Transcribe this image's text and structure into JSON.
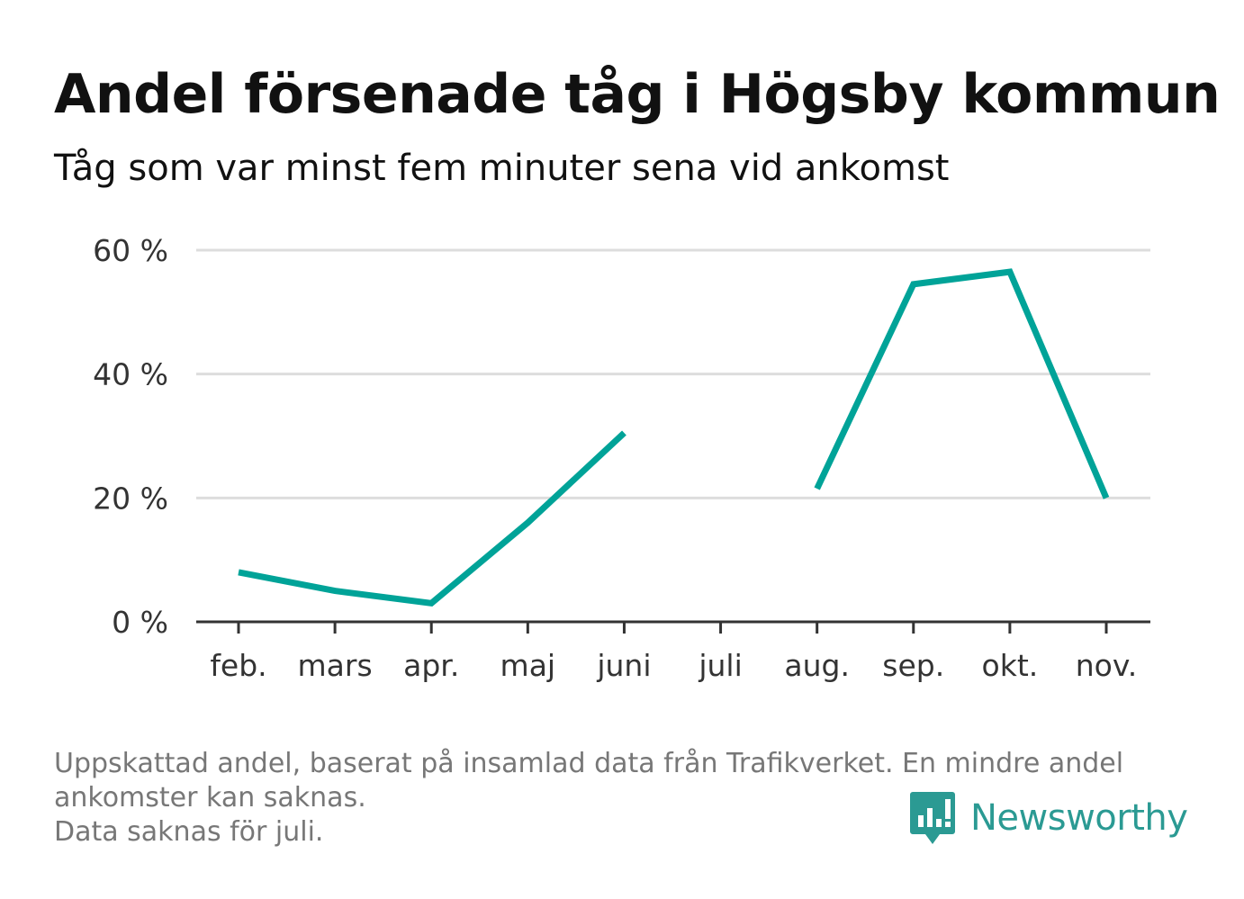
{
  "title": "Andel försenade tåg i Högsby kommun",
  "subtitle": "Tåg som var minst fem minuter sena vid ankomst",
  "footnote": {
    "line1": "Uppskattad andel, baserat på insamlad data från Trafikverket. En mindre andel",
    "line2": "ankomster kan saknas.",
    "line3": "Data saknas för juli."
  },
  "brand": {
    "name": "Newsworthy",
    "icon": "newsworthy-logo-icon",
    "color": "#2b9a93"
  },
  "chart_data": {
    "type": "line",
    "categories": [
      "feb.",
      "mars",
      "apr.",
      "maj",
      "juni",
      "juli",
      "aug.",
      "sep.",
      "okt.",
      "nov."
    ],
    "series": [
      {
        "values": [
          8,
          5,
          3,
          16,
          30.5,
          null,
          21.5,
          54.5,
          56.5,
          20
        ]
      }
    ],
    "y_ticks": [
      0,
      20,
      40,
      60
    ],
    "y_tick_labels": [
      "0 %",
      "20 %",
      "40 %",
      "60 %"
    ],
    "ylim": [
      0,
      60
    ],
    "grid": true,
    "line_color": "#00a398",
    "grid_color": "#dddddd",
    "axis_color": "#333333"
  }
}
